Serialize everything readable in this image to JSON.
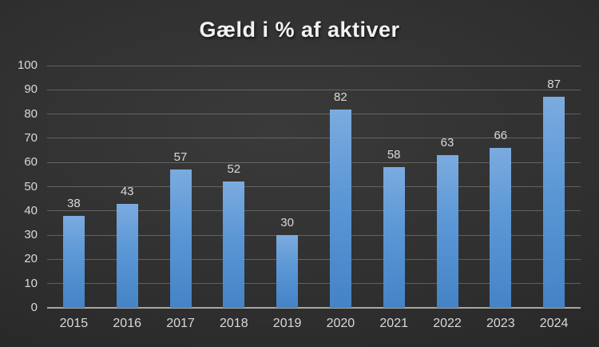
{
  "chart_data": {
    "type": "bar",
    "title": "Gæld i % af aktiver",
    "categories": [
      "2015",
      "2016",
      "2017",
      "2018",
      "2019",
      "2020",
      "2021",
      "2022",
      "2023",
      "2024"
    ],
    "values": [
      38,
      43,
      57,
      52,
      30,
      82,
      58,
      63,
      66,
      87
    ],
    "xlabel": "",
    "ylabel": "",
    "ylim": [
      0,
      100
    ],
    "ytick_step": 10,
    "ytick_labels": [
      "0",
      "10",
      "20",
      "30",
      "40",
      "50",
      "60",
      "70",
      "80",
      "90",
      "100"
    ],
    "grid": true,
    "legend": false,
    "data_labels": true,
    "colors": {
      "bar_gradient_top": "#7babdf",
      "bar_gradient_bottom": "#4483c6",
      "background_center": "#3a3a3a",
      "background_edge": "#1d1d1d",
      "text": "#d9d9d9",
      "title_text": "#f2f2f2",
      "gridline": "#8c8c8c",
      "axis_line": "#a6a6a6"
    }
  }
}
